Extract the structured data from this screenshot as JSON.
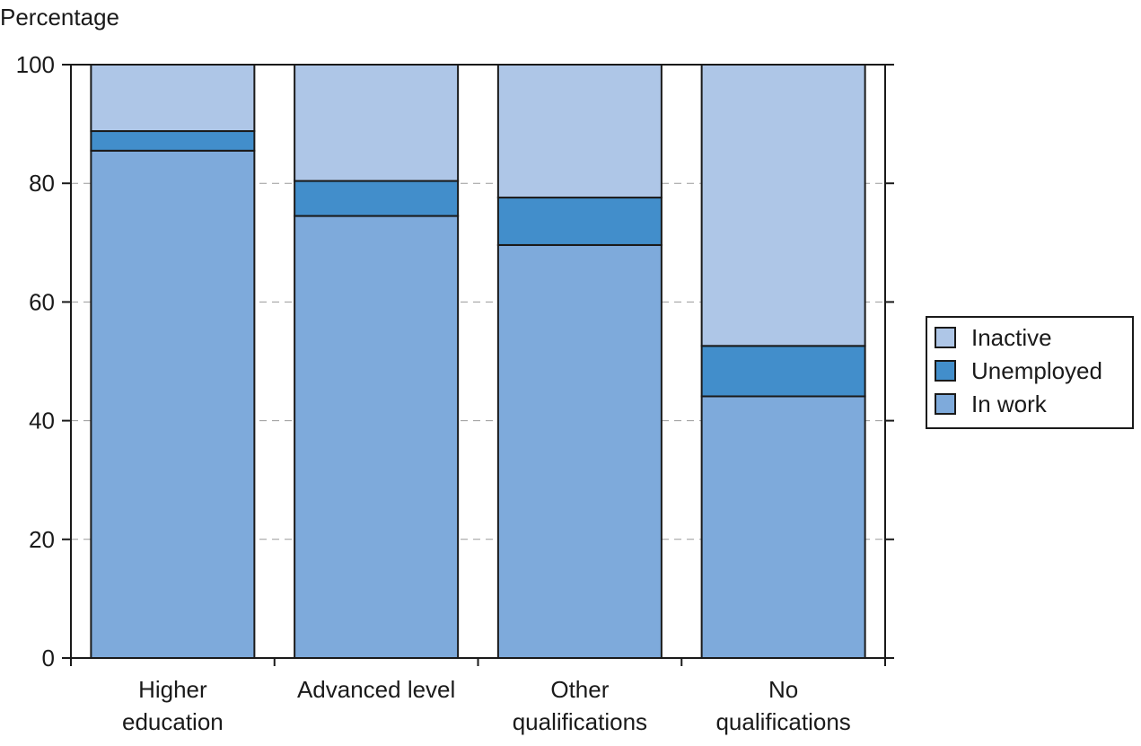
{
  "chart_data": {
    "type": "bar",
    "stacked": true,
    "ylabel": "Percentage",
    "xlabel": "",
    "ylim": [
      0,
      100
    ],
    "yticks": [
      0,
      20,
      40,
      60,
      80,
      100
    ],
    "grid": "horizontal dashed",
    "legend_position": "right",
    "categories": [
      [
        "Higher",
        "education"
      ],
      [
        "Advanced level"
      ],
      [
        "Other",
        "qualifications"
      ],
      [
        "No",
        "qualifications"
      ]
    ],
    "series": [
      {
        "name": "In work",
        "values": [
          85.5,
          74.5,
          69.6,
          44.1
        ],
        "color": "#7eaadb"
      },
      {
        "name": "Unemployed",
        "values": [
          3.3,
          5.9,
          8.0,
          8.5
        ],
        "color": "#428ecb"
      },
      {
        "name": "Inactive",
        "values": [
          11.2,
          19.6,
          22.4,
          47.4
        ],
        "color": "#aec6e7"
      }
    ],
    "legend_order": [
      "Inactive",
      "Unemployed",
      "In work"
    ]
  }
}
